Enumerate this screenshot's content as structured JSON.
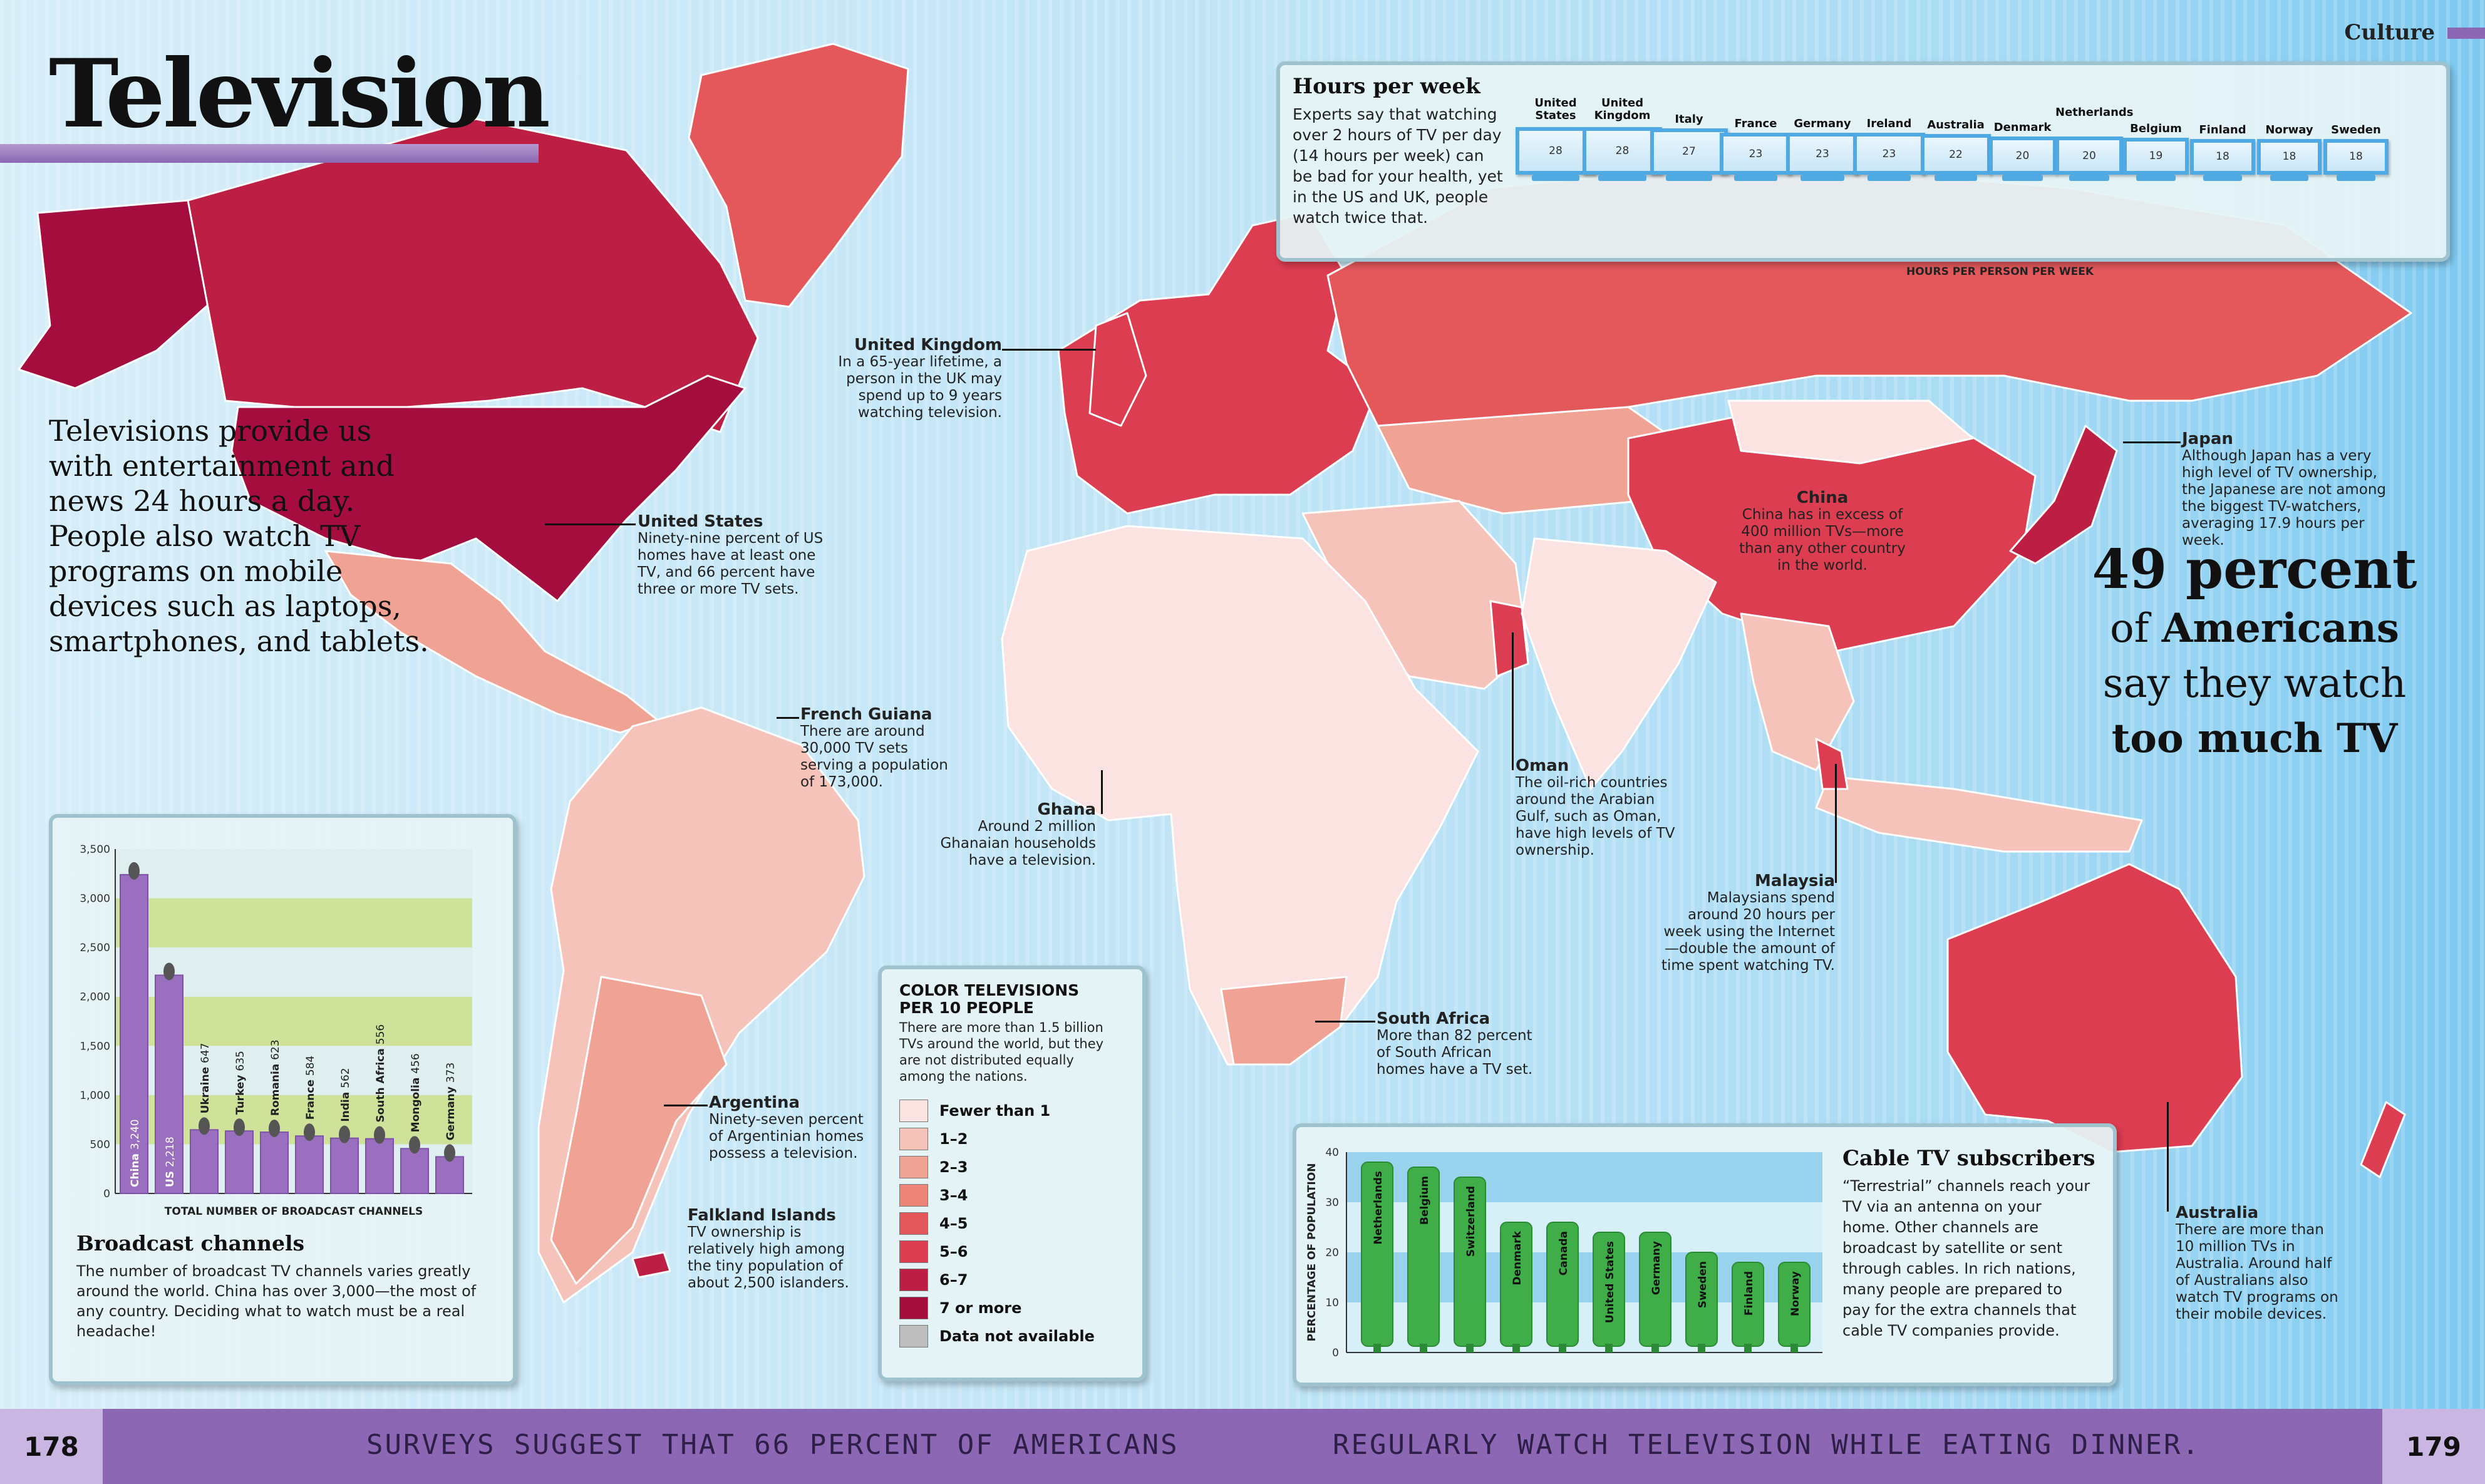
{
  "header": {
    "title": "Television",
    "section": "Culture"
  },
  "intro": "Televisions provide us with entertainment and news 24 hours a day. People also watch TV programs on mobile devices such as laptops, smartphones, and tablets.",
  "callout": {
    "line1": "49 percent",
    "line2_pre": "of ",
    "line2_bold": "Americans",
    "line3": "say they watch",
    "line4": "too much TV"
  },
  "annotations": {
    "uk": {
      "heading": "United Kingdom",
      "text": "In a 65-year lifetime, a person in the UK may spend up to 9 years watching television."
    },
    "us": {
      "heading": "United States",
      "text": "Ninety-nine percent of US homes have at least one TV, and 66 percent have three or more TV sets."
    },
    "french_guiana": {
      "heading": "French Guiana",
      "text": "There are around 30,000 TV sets serving a population of 173,000."
    },
    "ghana": {
      "heading": "Ghana",
      "text": "Around 2 million Ghanaian households have a television."
    },
    "argentina": {
      "heading": "Argentina",
      "text": "Ninety-seven percent of Argentinian homes possess a television."
    },
    "falklands": {
      "heading": "Falkland Islands",
      "text": "TV ownership is relatively high among the tiny population of about 2,500 islanders."
    },
    "china": {
      "heading": "China",
      "text": "China has in excess of 400 million TVs—more than any other country in the world."
    },
    "japan": {
      "heading": "Japan",
      "text": "Although Japan has a very high level of TV ownership, the Japanese are not among the biggest TV-watchers, averaging 17.9 hours per week."
    },
    "oman": {
      "heading": "Oman",
      "text": "The oil-rich countries around the Arabian Gulf, such as Oman, have high levels of TV ownership."
    },
    "malaysia": {
      "heading": "Malaysia",
      "text": "Malaysians spend around 20 hours per week using the Internet—double the amount of time spent watching TV."
    },
    "south_africa": {
      "heading": "South Africa",
      "text": "More than 82 percent of South African homes have a TV set."
    },
    "australia": {
      "heading": "Australia",
      "text": "There are more than 10 million TVs in Australia. Around half of Australians also watch TV programs on their mobile devices."
    }
  },
  "hours_panel": {
    "title": "Hours per week",
    "text": "Experts say that watching over 2 hours of TV per day (14 hours per week) can be bad for your health, yet in the US and UK, people watch twice that.",
    "axis_label": "HOURS PER PERSON PER WEEK"
  },
  "legend": {
    "title": "COLOR TELEVISIONS PER 10 PEOPLE",
    "text": "There are more than 1.5 billion TVs around the world, but they are not distributed equally among the nations.",
    "items": [
      {
        "label": "Fewer than 1",
        "color": "#fbe3e1"
      },
      {
        "label": "1–2",
        "color": "#f6c3bb"
      },
      {
        "label": "2–3",
        "color": "#f0a394"
      },
      {
        "label": "3–4",
        "color": "#ec8577"
      },
      {
        "label": "4–5",
        "color": "#e4585c"
      },
      {
        "label": "5–6",
        "color": "#dc3d50"
      },
      {
        "label": "6–7",
        "color": "#bd1f44"
      },
      {
        "label": "7 or more",
        "color": "#a50d3f"
      },
      {
        "label": "Data not available",
        "color": "#bdbdbd"
      }
    ]
  },
  "broadcast": {
    "title": "Broadcast channels",
    "text": "The number of broadcast TV channels varies greatly around the world. China has over 3,000—the most of any country. Deciding what to watch must be a real headache!"
  },
  "cable": {
    "title": "Cable TV subscribers",
    "text": "“Terrestrial” channels reach your TV via an antenna on your home. Other channels are broadcast by satellite or sent through cables. In rich nations, many people are prepared to pay for the extra channels that cable TV companies provide."
  },
  "footer": {
    "left_page": "178",
    "right_page": "179",
    "left_text": "SURVEYS SUGGEST THAT 66 PERCENT OF AMERICANS",
    "right_text": "REGULARLY WATCH TELEVISION WHILE EATING DINNER."
  },
  "chart_data": [
    {
      "type": "bar",
      "title": "Hours per week",
      "xlabel": "HOURS PER PERSON PER WEEK",
      "categories": [
        "United States",
        "United Kingdom",
        "Italy",
        "France",
        "Germany",
        "Ireland",
        "Australia",
        "Denmark",
        "Netherlands",
        "Belgium",
        "Finland",
        "Norway",
        "Sweden"
      ],
      "values": [
        28,
        28,
        27,
        23,
        23,
        23,
        22,
        20,
        20,
        19,
        18,
        18,
        18
      ]
    },
    {
      "type": "bar",
      "title": "Broadcast channels",
      "xlabel": "TOTAL NUMBER OF BROADCAST CHANNELS",
      "categories": [
        "China",
        "US",
        "Ukraine",
        "Turkey",
        "Romania",
        "France",
        "India",
        "South Africa",
        "Mongolia",
        "Germany"
      ],
      "values": [
        3240,
        2218,
        647,
        635,
        623,
        584,
        562,
        556,
        456,
        373
      ],
      "ylim": [
        0,
        3500
      ],
      "yticks": [
        "0",
        "500",
        "1,000",
        "1,500",
        "2,000",
        "2,500",
        "3,000",
        "3,500"
      ]
    },
    {
      "type": "bar",
      "title": "Cable TV subscribers",
      "ylabel": "PERCENTAGE OF POPULATION",
      "categories": [
        "Netherlands",
        "Belgium",
        "Switzerland",
        "Denmark",
        "Canada",
        "United States",
        "Germany",
        "Sweden",
        "Finland",
        "Norway"
      ],
      "values": [
        38,
        37,
        35,
        26,
        26,
        24,
        24,
        20,
        18,
        18
      ],
      "ylim": [
        0,
        40
      ],
      "yticks": [
        "0",
        "10",
        "20",
        "30",
        "40"
      ]
    }
  ]
}
